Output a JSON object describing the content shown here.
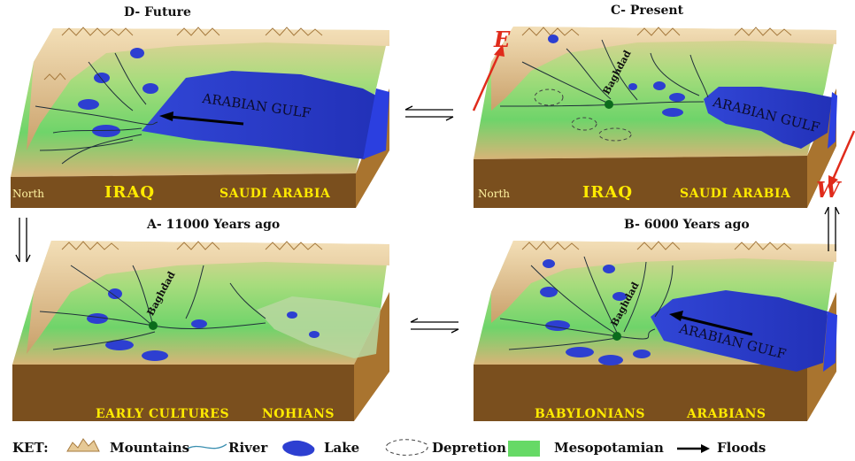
{
  "panels": {
    "d": {
      "title": "D- Future",
      "gulf_label": "ARABIAN GULF",
      "front_left": "North",
      "front_mid": "IRAQ",
      "front_right": "SAUDI ARABIA"
    },
    "c": {
      "title": "C- Present",
      "gulf_label": "ARABIAN GULF",
      "city": "Baghdad",
      "front_left": "North",
      "front_mid": "IRAQ",
      "front_right": "SAUDI ARABIA"
    },
    "a": {
      "title": "A- 11000 Years ago",
      "city": "Baghdad",
      "front_mid": "EARLY CULTURES",
      "front_right": "NOHIANS"
    },
    "b": {
      "title": "B- 6000 Years ago",
      "gulf_label": "ARABIAN GULF",
      "city": "Baghdad",
      "front_mid": "BABYLONIANS",
      "front_right": "ARABIANS"
    }
  },
  "compass": {
    "east": "E",
    "west": "W"
  },
  "legend": {
    "title": "KET:",
    "items": [
      {
        "label": "Mountains",
        "icon": "mountain-icon"
      },
      {
        "label": "River",
        "icon": "river-icon"
      },
      {
        "label": "Lake",
        "icon": "lake-icon"
      },
      {
        "label": "Depretion",
        "icon": "depression-icon"
      },
      {
        "label": "Mesopotamian",
        "icon": "mesopotamian-swatch-icon"
      },
      {
        "label": "Floods",
        "icon": "flood-arrow-icon"
      }
    ]
  },
  "colors": {
    "lake": "#2d3fd1",
    "mesopotamian": "#66d966",
    "sand": "#e8c48a",
    "soil_front": "#7a4f1e",
    "soil_side": "#a9742f",
    "label_yellow": "#ffea00",
    "compass_red": "#e02b1b"
  }
}
